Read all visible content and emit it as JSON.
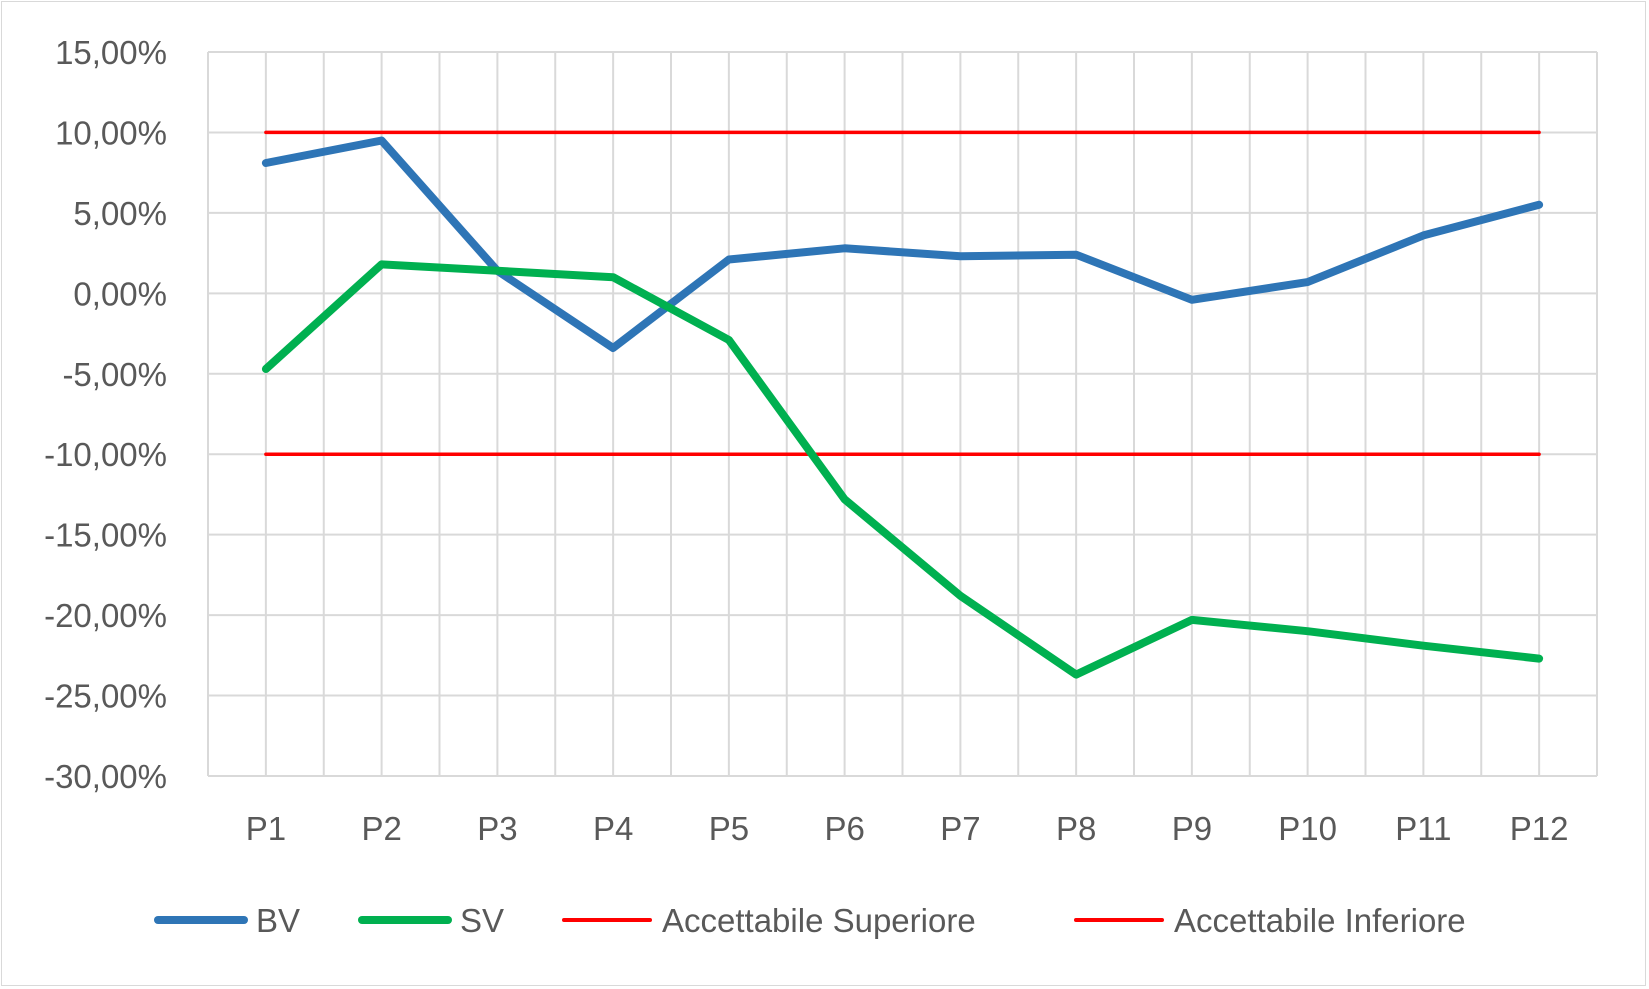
{
  "chart_data": {
    "type": "line",
    "title": "",
    "xlabel": "",
    "ylabel": "",
    "categories": [
      "P1",
      "P2",
      "P3",
      "P4",
      "P5",
      "P6",
      "P7",
      "P8",
      "P9",
      "P10",
      "P11",
      "P12"
    ],
    "y_ticks": [
      "15,00%",
      "10,00%",
      "5,00%",
      "0,00%",
      "-5,00%",
      "-10,00%",
      "-15,00%",
      "-20,00%",
      "-25,00%",
      "-30,00%"
    ],
    "ylim": [
      -30,
      15
    ],
    "y_unit": "%",
    "grid": true,
    "legend_position": "bottom",
    "series": [
      {
        "name": "BV",
        "color": "#2e75b6",
        "values": [
          8.1,
          9.5,
          1.4,
          -3.4,
          2.1,
          2.8,
          2.3,
          2.4,
          -0.4,
          0.7,
          3.6,
          5.5
        ]
      },
      {
        "name": "SV",
        "color": "#00b050",
        "values": [
          -4.7,
          1.8,
          1.4,
          1.0,
          -2.9,
          -12.8,
          -18.8,
          -23.7,
          -20.3,
          -21.0,
          -21.9,
          -22.7
        ]
      },
      {
        "name": "Accettabile Superiore",
        "color": "#ff0000",
        "values": [
          10,
          10,
          10,
          10,
          10,
          10,
          10,
          10,
          10,
          10,
          10,
          10
        ]
      },
      {
        "name": "Accettabile Inferiore",
        "color": "#ff0000",
        "values": [
          -10,
          -10,
          -10,
          -10,
          -10,
          -10,
          -10,
          -10,
          -10,
          -10,
          -10,
          -10
        ]
      }
    ]
  }
}
